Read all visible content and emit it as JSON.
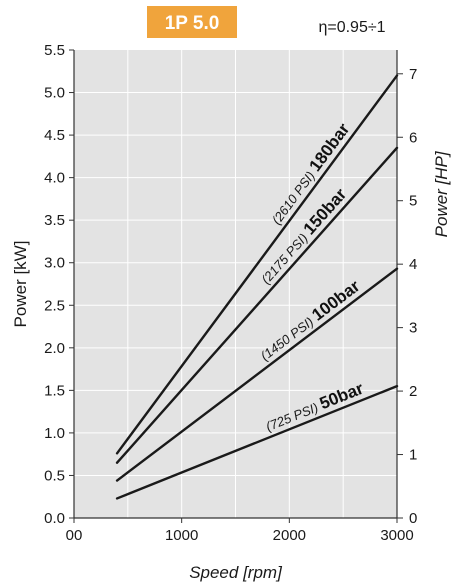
{
  "chart_data": {
    "type": "line",
    "model_label": "1P 5.0",
    "efficiency_label": "η=0.95÷1",
    "badge_color": "#f0a43c",
    "plot_background": "#e3e3e3",
    "grid": true,
    "xlabel": "Speed [rpm]",
    "ylabel_left": "Power [kW]",
    "ylabel_right": "Power [HP]",
    "xlim": [
      0,
      3000
    ],
    "ylim_left": [
      0,
      5.5
    ],
    "ylim_right": [
      0,
      7.375
    ],
    "x_ticks": [
      0,
      1000,
      2000,
      3000
    ],
    "x_tick_labels": [
      "00",
      "1000",
      "2000",
      "3000"
    ],
    "y_ticks_left": [
      "0.0",
      "0.5",
      "1.0",
      "1.5",
      "2.0",
      "2.5",
      "3.0",
      "3.5",
      "4.0",
      "4.5",
      "5.0",
      "5.5"
    ],
    "y_ticks_right": [
      "0",
      "1",
      "2",
      "3",
      "4",
      "5",
      "6",
      "7"
    ],
    "series": [
      {
        "name": "50bar",
        "psi": "(725 PSI)",
        "x": [
          400,
          3000
        ],
        "y": [
          0.23,
          1.55
        ]
      },
      {
        "name": "100bar",
        "psi": "(1450 PSI)",
        "x": [
          400,
          3000
        ],
        "y": [
          0.44,
          2.93
        ]
      },
      {
        "name": "150bar",
        "psi": "(2175 PSI)",
        "x": [
          400,
          3000
        ],
        "y": [
          0.65,
          4.35
        ]
      },
      {
        "name": "180bar",
        "psi": "(2610 PSI)",
        "x": [
          400,
          3000
        ],
        "y": [
          0.76,
          5.2
        ]
      }
    ]
  }
}
